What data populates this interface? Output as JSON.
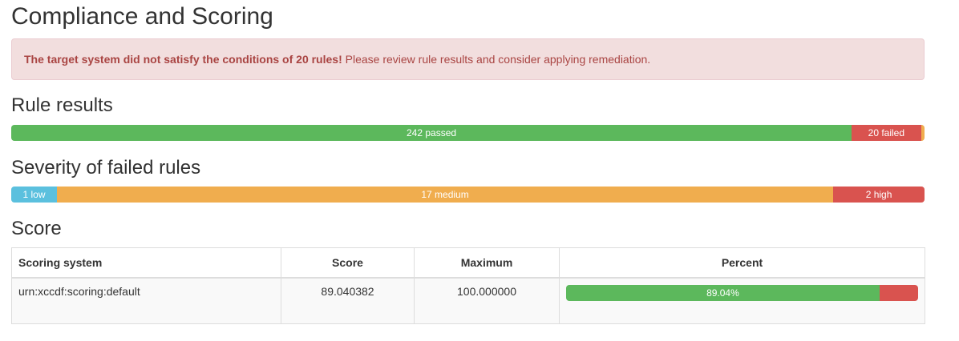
{
  "title": "Compliance and Scoring",
  "alert": {
    "bold": "The target system did not satisfy the conditions of 20 rules!",
    "text": " Please review rule results and consider applying remediation."
  },
  "rule_results": {
    "heading": "Rule results",
    "segments": [
      {
        "label": "242 passed",
        "count": 242,
        "color": "#5cb85c"
      },
      {
        "label": "20 failed",
        "count": 20,
        "color": "#d9534f"
      },
      {
        "label": "",
        "count": 1,
        "color": "#f0ad4e"
      }
    ]
  },
  "severity": {
    "heading": "Severity of failed rules",
    "segments": [
      {
        "label": "1 low",
        "count": 1,
        "color": "#5bc0de"
      },
      {
        "label": "17 medium",
        "count": 17,
        "color": "#f0ad4e"
      },
      {
        "label": "2 high",
        "count": 2,
        "color": "#d9534f"
      }
    ]
  },
  "score": {
    "heading": "Score",
    "columns": [
      "Scoring system",
      "Score",
      "Maximum",
      "Percent"
    ],
    "rows": [
      {
        "system": "urn:xccdf:scoring:default",
        "score": "89.040382",
        "maximum": "100.000000",
        "percent_label": "89.04%",
        "percent": 89.04
      }
    ]
  }
}
